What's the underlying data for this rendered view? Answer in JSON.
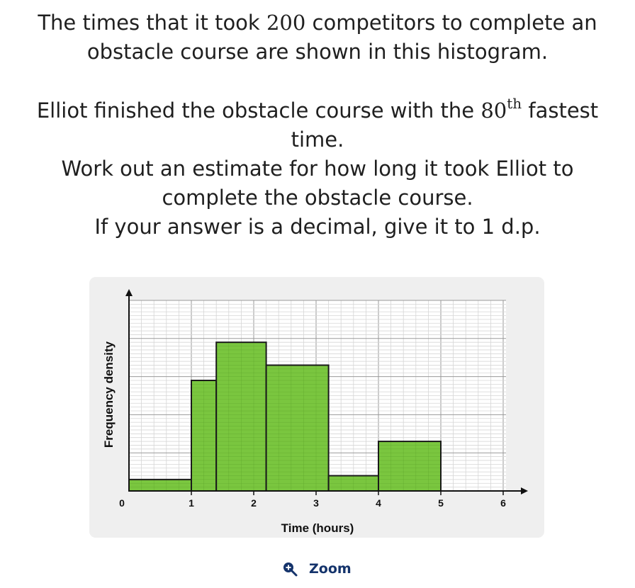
{
  "question": {
    "line1": "The times that it took",
    "count": "200",
    "line1b": "competitors to complete an",
    "line2": "obstacle course are shown in this histogram.",
    "line3a": "Elliot finished the obstacle course with the",
    "rank": "80",
    "rank_suffix": "th",
    "line3b": "fastest",
    "line4": "time.",
    "line5": "Work out an estimate for how long it took Elliot to",
    "line6": "complete the obstacle course.",
    "line7": "If your answer is a decimal, give it to 1 d.p."
  },
  "chart_data": {
    "type": "histogram",
    "xlabel": "Time (hours)",
    "ylabel": "Frequency density",
    "x_ticks": [
      "0",
      "1",
      "2",
      "3",
      "4",
      "5",
      "6"
    ],
    "xlim": [
      0,
      6
    ],
    "ylim": [
      0,
      5
    ],
    "grid": true,
    "bar_color": "#7ac63f",
    "bars": [
      {
        "from": 0,
        "to": 1,
        "value": 0.3
      },
      {
        "from": 1,
        "to": 1.4,
        "value": 2.9
      },
      {
        "from": 1.4,
        "to": 2.2,
        "value": 3.9
      },
      {
        "from": 2.2,
        "to": 3.2,
        "value": 3.3
      },
      {
        "from": 3.2,
        "to": 4.0,
        "value": 0.4
      },
      {
        "from": 4.0,
        "to": 5.0,
        "value": 1.3
      }
    ]
  },
  "zoom": {
    "label": "Zoom",
    "icon": "zoom-in-icon"
  }
}
